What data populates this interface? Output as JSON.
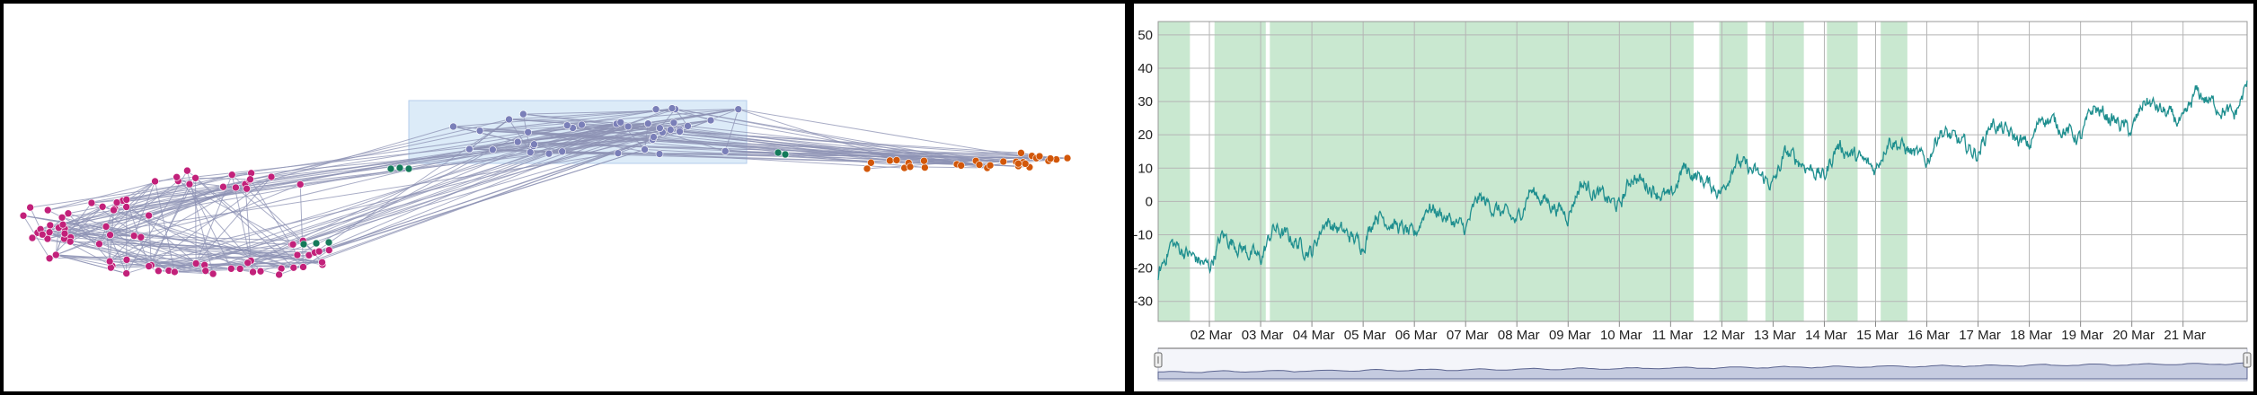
{
  "chart_data": [
    {
      "type": "network",
      "groups": [
        {
          "name": "magenta",
          "color": "#c2217a"
        },
        {
          "name": "green",
          "color": "#147a5a"
        },
        {
          "name": "purple",
          "color": "#7a7fb8"
        },
        {
          "name": "orange",
          "color": "#d2570a"
        }
      ],
      "edge_color": "#8d92b4",
      "selection_color": "#d6e8f7"
    },
    {
      "type": "line",
      "y_ticks": [
        "50",
        "40",
        "30",
        "20",
        "10",
        "0",
        "-10",
        "-20",
        "-30"
      ],
      "ylim": [
        -36,
        54
      ],
      "x_ticks": [
        "02 Mar",
        "03 Mar",
        "04 Mar",
        "05 Mar",
        "06 Mar",
        "07 Mar",
        "08 Mar",
        "09 Mar",
        "10 Mar",
        "11 Mar",
        "12 Mar",
        "13 Mar",
        "14 Mar",
        "15 Mar",
        "16 Mar",
        "17 Mar",
        "18 Mar",
        "19 Mar",
        "20 Mar",
        "21 Mar"
      ],
      "xlim_days": [
        0.0,
        21.25
      ],
      "series_color": "#1f8f8f",
      "shade_color": "#c9e8d0",
      "shaded_ranges_days": [
        [
          0.0,
          0.62
        ],
        [
          1.1,
          2.1
        ],
        [
          2.18,
          10.45
        ],
        [
          10.95,
          11.5
        ],
        [
          11.85,
          12.6
        ],
        [
          13.05,
          13.65
        ],
        [
          14.1,
          14.62
        ]
      ],
      "trend": {
        "start": -18,
        "end": 30,
        "daily_amplitude": 9,
        "noise": 2.2
      },
      "navigator": {
        "fill": "#c5cbe0",
        "line": "#5c6590"
      }
    }
  ]
}
